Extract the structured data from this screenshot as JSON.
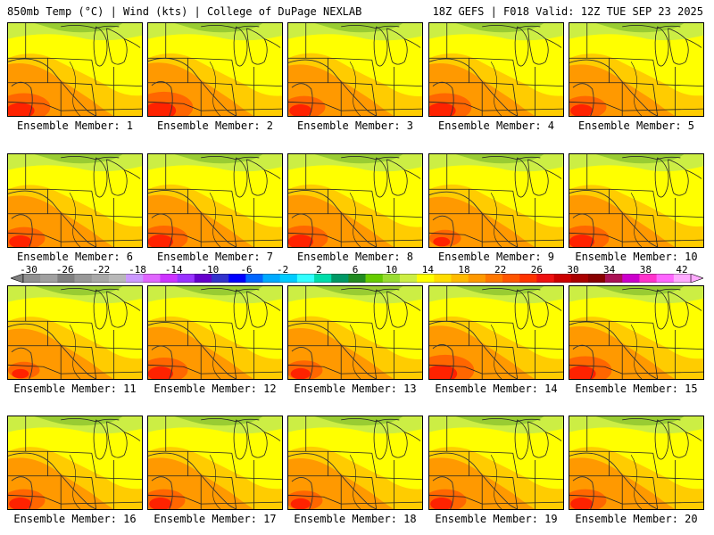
{
  "header": {
    "left": "850mb Temp (°C) | Wind (kts) | College of DuPage NEXLAB",
    "right": "18Z GEFS | F018 Valid: 12Z TUE SEP 23 2025"
  },
  "panels": [
    {
      "label": "Ensemble Member: 1",
      "hot": 1.0,
      "east": 0.5
    },
    {
      "label": "Ensemble Member: 2",
      "hot": 1.1,
      "east": 0.6
    },
    {
      "label": "Ensemble Member: 3",
      "hot": 0.8,
      "east": 0.7
    },
    {
      "label": "Ensemble Member: 4",
      "hot": 1.0,
      "east": 0.6
    },
    {
      "label": "Ensemble Member: 5",
      "hot": 0.8,
      "east": 0.5
    },
    {
      "label": "Ensemble Member: 6",
      "hot": 0.8,
      "east": 0.4
    },
    {
      "label": "Ensemble Member: 7",
      "hot": 0.9,
      "east": 0.6
    },
    {
      "label": "Ensemble Member: 8",
      "hot": 0.9,
      "east": 0.6
    },
    {
      "label": "Ensemble Member: 9",
      "hot": 0.6,
      "east": 0.6
    },
    {
      "label": "Ensemble Member: 10",
      "hot": 0.9,
      "east": 0.4
    },
    {
      "label": "Ensemble Member: 11",
      "hot": 0.6,
      "east": 0.5
    },
    {
      "label": "Ensemble Member: 12",
      "hot": 0.9,
      "east": 0.6
    },
    {
      "label": "Ensemble Member: 13",
      "hot": 0.7,
      "east": 0.7
    },
    {
      "label": "Ensemble Member: 14",
      "hot": 1.1,
      "east": 0.6
    },
    {
      "label": "Ensemble Member: 15",
      "hot": 1.0,
      "east": 0.5
    },
    {
      "label": "Ensemble Member: 16",
      "hot": 0.8,
      "east": 0.5
    },
    {
      "label": "Ensemble Member: 17",
      "hot": 0.8,
      "east": 0.5
    },
    {
      "label": "Ensemble Member: 18",
      "hot": 0.7,
      "east": 0.6
    },
    {
      "label": "Ensemble Member: 19",
      "hot": 0.8,
      "east": 0.5
    },
    {
      "label": "Ensemble Member: 20",
      "hot": 0.8,
      "east": 0.5
    }
  ],
  "colorbar": {
    "ticks": [
      "-30",
      "-26",
      "-22",
      "-18",
      "-14",
      "-10",
      "-6",
      "-2",
      "2",
      "6",
      "10",
      "14",
      "18",
      "22",
      "26",
      "30",
      "34",
      "38",
      "42"
    ],
    "colors": [
      "#909090",
      "#a0a0a0",
      "#808080",
      "#989898",
      "#a8a8a8",
      "#b8b8b8",
      "#cc99ff",
      "#e066ff",
      "#cc33ff",
      "#9933ff",
      "#6600cc",
      "#3333cc",
      "#0000ff",
      "#0066ff",
      "#00aaff",
      "#00ccff",
      "#33ffff",
      "#00ddaa",
      "#009966",
      "#228b22",
      "#66cc00",
      "#99dd33",
      "#ccee44",
      "#ffff00",
      "#ffdd00",
      "#ffbb00",
      "#ff9900",
      "#ff7700",
      "#ff5500",
      "#ff3300",
      "#ee1111",
      "#cc0000",
      "#aa0000",
      "#880000",
      "#aa1155",
      "#cc00cc",
      "#ff33cc",
      "#ff66ff",
      "#ffaaff"
    ]
  },
  "palette": {
    "cold": "#99cc33",
    "cool": "#ccee44",
    "mild": "#ffff00",
    "warm": "#ffcc00",
    "warmer": "#ff9900",
    "hot": "#ff6600",
    "veryhot": "#ff2200"
  }
}
